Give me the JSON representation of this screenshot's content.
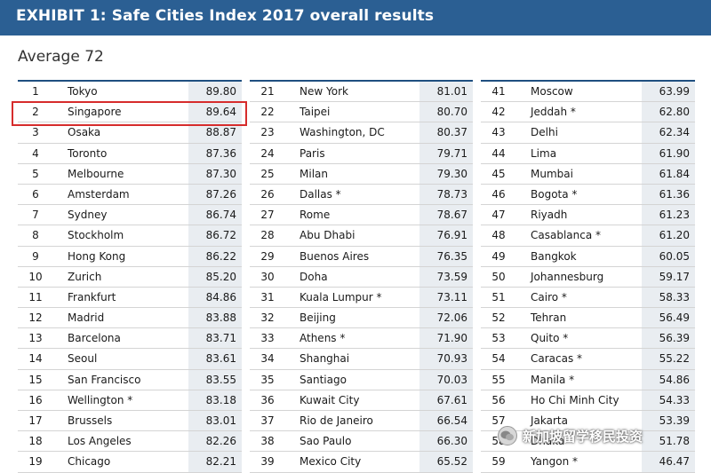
{
  "header": {
    "title": "EXHIBIT 1: Safe Cities Index 2017 overall results"
  },
  "subtitle": "Average 72",
  "watermark": {
    "text": "新加坡留学移民投资",
    "icon": "wechat-icon"
  },
  "colors": {
    "header_bg": "#2b5f93",
    "score_bg": "#e9edf1",
    "highlight": "#d62c2c"
  },
  "highlighted_rank": "2",
  "columns": [
    [
      {
        "rank": "1",
        "city": "Tokyo",
        "score": "89.80"
      },
      {
        "rank": "2",
        "city": "Singapore",
        "score": "89.64"
      },
      {
        "rank": "3",
        "city": "Osaka",
        "score": "88.87"
      },
      {
        "rank": "4",
        "city": "Toronto",
        "score": "87.36"
      },
      {
        "rank": "5",
        "city": "Melbourne",
        "score": "87.30"
      },
      {
        "rank": "6",
        "city": "Amsterdam",
        "score": "87.26"
      },
      {
        "rank": "7",
        "city": "Sydney",
        "score": "86.74"
      },
      {
        "rank": "8",
        "city": "Stockholm",
        "score": "86.72"
      },
      {
        "rank": "9",
        "city": "Hong Kong",
        "score": "86.22"
      },
      {
        "rank": "10",
        "city": "Zurich",
        "score": "85.20"
      },
      {
        "rank": "11",
        "city": "Frankfurt",
        "score": "84.86"
      },
      {
        "rank": "12",
        "city": "Madrid",
        "score": "83.88"
      },
      {
        "rank": "13",
        "city": "Barcelona",
        "score": "83.71"
      },
      {
        "rank": "14",
        "city": "Seoul",
        "score": "83.61"
      },
      {
        "rank": "15",
        "city": "San Francisco",
        "score": "83.55"
      },
      {
        "rank": "16",
        "city": "Wellington *",
        "score": "83.18"
      },
      {
        "rank": "17",
        "city": "Brussels",
        "score": "83.01"
      },
      {
        "rank": "18",
        "city": "Los Angeles",
        "score": "82.26"
      },
      {
        "rank": "19",
        "city": "Chicago",
        "score": "82.21"
      }
    ],
    [
      {
        "rank": "21",
        "city": "New York",
        "score": "81.01"
      },
      {
        "rank": "22",
        "city": "Taipei",
        "score": "80.70"
      },
      {
        "rank": "23",
        "city": "Washington, DC",
        "score": "80.37"
      },
      {
        "rank": "24",
        "city": "Paris",
        "score": "79.71"
      },
      {
        "rank": "25",
        "city": "Milan",
        "score": "79.30"
      },
      {
        "rank": "26",
        "city": "Dallas *",
        "score": "78.73"
      },
      {
        "rank": "27",
        "city": "Rome",
        "score": "78.67"
      },
      {
        "rank": "28",
        "city": "Abu Dhabi",
        "score": "76.91"
      },
      {
        "rank": "29",
        "city": "Buenos Aires",
        "score": "76.35"
      },
      {
        "rank": "30",
        "city": "Doha",
        "score": "73.59"
      },
      {
        "rank": "31",
        "city": "Kuala Lumpur *",
        "score": "73.11"
      },
      {
        "rank": "32",
        "city": "Beijing",
        "score": "72.06"
      },
      {
        "rank": "33",
        "city": "Athens *",
        "score": "71.90"
      },
      {
        "rank": "34",
        "city": "Shanghai",
        "score": "70.93"
      },
      {
        "rank": "35",
        "city": "Santiago",
        "score": "70.03"
      },
      {
        "rank": "36",
        "city": "Kuwait City",
        "score": "67.61"
      },
      {
        "rank": "37",
        "city": "Rio de Janeiro",
        "score": "66.54"
      },
      {
        "rank": "38",
        "city": "Sao Paulo",
        "score": "66.30"
      },
      {
        "rank": "39",
        "city": "Mexico City",
        "score": "65.52"
      }
    ],
    [
      {
        "rank": "41",
        "city": "Moscow",
        "score": "63.99"
      },
      {
        "rank": "42",
        "city": "Jeddah *",
        "score": "62.80"
      },
      {
        "rank": "43",
        "city": "Delhi",
        "score": "62.34"
      },
      {
        "rank": "44",
        "city": "Lima",
        "score": "61.90"
      },
      {
        "rank": "45",
        "city": "Mumbai",
        "score": "61.84"
      },
      {
        "rank": "46",
        "city": "Bogota *",
        "score": "61.36"
      },
      {
        "rank": "47",
        "city": "Riyadh",
        "score": "61.23"
      },
      {
        "rank": "48",
        "city": "Casablanca *",
        "score": "61.20"
      },
      {
        "rank": "49",
        "city": "Bangkok",
        "score": "60.05"
      },
      {
        "rank": "50",
        "city": "Johannesburg",
        "score": "59.17"
      },
      {
        "rank": "51",
        "city": "Cairo *",
        "score": "58.33"
      },
      {
        "rank": "52",
        "city": "Tehran",
        "score": "56.49"
      },
      {
        "rank": "53",
        "city": "Quito *",
        "score": "56.39"
      },
      {
        "rank": "54",
        "city": "Caracas *",
        "score": "55.22"
      },
      {
        "rank": "55",
        "city": "Manila *",
        "score": "54.86"
      },
      {
        "rank": "56",
        "city": "Ho Chi Minh City",
        "score": "54.33"
      },
      {
        "rank": "57",
        "city": "Jakarta",
        "score": "53.39"
      },
      {
        "rank": "58",
        "city": "Dhaka",
        "score": "51.78"
      },
      {
        "rank": "59",
        "city": "Yangon *",
        "score": "46.47"
      }
    ]
  ]
}
